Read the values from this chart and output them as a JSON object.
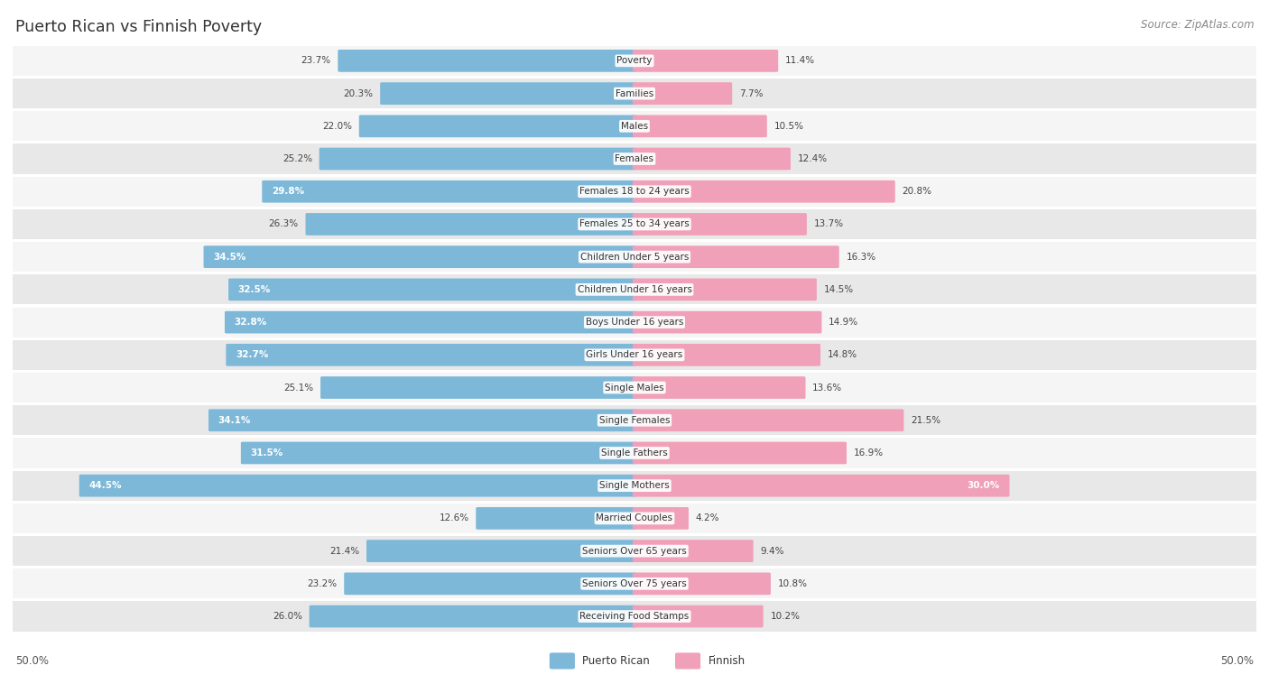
{
  "title": "Puerto Rican vs Finnish Poverty",
  "source": "Source: ZipAtlas.com",
  "categories": [
    "Poverty",
    "Families",
    "Males",
    "Females",
    "Females 18 to 24 years",
    "Females 25 to 34 years",
    "Children Under 5 years",
    "Children Under 16 years",
    "Boys Under 16 years",
    "Girls Under 16 years",
    "Single Males",
    "Single Females",
    "Single Fathers",
    "Single Mothers",
    "Married Couples",
    "Seniors Over 65 years",
    "Seniors Over 75 years",
    "Receiving Food Stamps"
  ],
  "puerto_rican": [
    23.7,
    20.3,
    22.0,
    25.2,
    29.8,
    26.3,
    34.5,
    32.5,
    32.8,
    32.7,
    25.1,
    34.1,
    31.5,
    44.5,
    12.6,
    21.4,
    23.2,
    26.0
  ],
  "finnish": [
    11.4,
    7.7,
    10.5,
    12.4,
    20.8,
    13.7,
    16.3,
    14.5,
    14.9,
    14.8,
    13.6,
    21.5,
    16.9,
    30.0,
    4.2,
    9.4,
    10.8,
    10.2
  ],
  "max_val": 50.0,
  "puerto_rican_color": "#7db8d8",
  "finnish_color": "#f0a0b8",
  "row_bg_light": "#f5f5f5",
  "row_bg_dark": "#e8e8e8",
  "threshold_inside": 29.0
}
